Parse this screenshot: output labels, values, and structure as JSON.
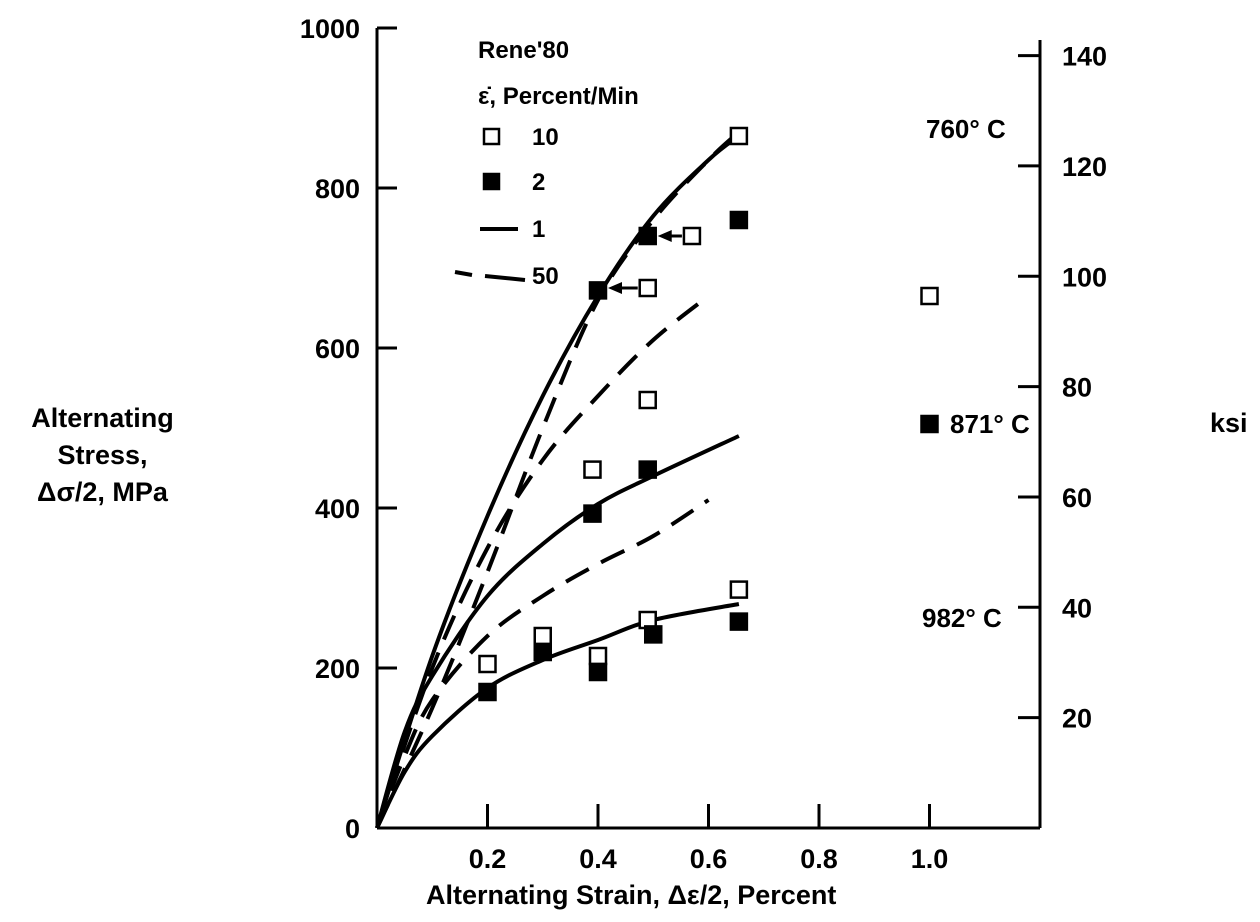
{
  "chart_data": {
    "type": "scatter",
    "title": "",
    "xlabel": "Alternating Strain, Δε/2, Percent",
    "ylabel": [
      "Alternating",
      "Stress,",
      "Δσ/2, MPa"
    ],
    "y2label": "ksi",
    "xlim": [
      0,
      1.2
    ],
    "ylim": [
      0,
      1000
    ],
    "y2lim": [
      0,
      145
    ],
    "x_ticks": [
      0.2,
      0.4,
      0.6,
      0.8,
      1.0
    ],
    "x_tick_labels": [
      "0.2",
      "0.4",
      "0.6",
      "0.8",
      "1.0"
    ],
    "y_ticks": [
      0,
      200,
      400,
      600,
      800,
      1000
    ],
    "y_tick_labels": [
      "0",
      "200",
      "400",
      "600",
      "800",
      "1000"
    ],
    "y2_ticks": [
      20,
      40,
      60,
      80,
      100,
      120,
      140
    ],
    "y2_tick_labels": [
      "20",
      "40",
      "60",
      "80",
      "100",
      "120",
      "140"
    ],
    "grid": false,
    "legend": {
      "position": "top-left",
      "title": "Rene'80",
      "subtitle": "ε̇,  Percent/Min",
      "entries": [
        {
          "marker": "open-square",
          "label": "10"
        },
        {
          "marker": "filled-square",
          "label": "2"
        },
        {
          "marker": "solid-line",
          "label": "1"
        },
        {
          "marker": "dashed-line",
          "label": "50"
        }
      ]
    },
    "annotations": [
      "760° C",
      "871° C",
      "982° C"
    ],
    "series": [
      {
        "name": "10",
        "style": "open-square",
        "temperature": "760° C",
        "x": [
          0.655,
          0.57,
          0.49
        ],
        "y": [
          865,
          740,
          675
        ]
      },
      {
        "name": "2",
        "style": "filled-square",
        "temperature": "760° C",
        "x": [
          0.655,
          0.49,
          0.4
        ],
        "y": [
          760,
          740,
          672
        ]
      },
      {
        "name": "10",
        "style": "open-square",
        "temperature": "871° C",
        "x": [
          1.0,
          0.49,
          0.39
        ],
        "y": [
          665,
          535,
          448
        ]
      },
      {
        "name": "2",
        "style": "filled-square",
        "temperature": "871° C",
        "x": [
          1.0,
          0.49,
          0.39
        ],
        "y": [
          505,
          448,
          393
        ]
      },
      {
        "name": "10",
        "style": "open-square",
        "temperature": "982° C",
        "x": [
          0.2,
          0.3,
          0.4,
          0.49,
          0.655
        ],
        "y": [
          205,
          240,
          215,
          260,
          298
        ]
      },
      {
        "name": "2",
        "style": "filled-square",
        "temperature": "982° C",
        "x": [
          0.2,
          0.3,
          0.4,
          0.5,
          0.655
        ],
        "y": [
          170,
          220,
          195,
          242,
          258
        ]
      },
      {
        "name": "1",
        "style": "solid-line",
        "temperature": "760° C",
        "x": [
          0,
          0.1,
          0.2,
          0.3,
          0.4,
          0.5,
          0.6,
          0.655
        ],
        "y": [
          0,
          215,
          390,
          540,
          665,
          765,
          835,
          865
        ]
      },
      {
        "name": "50",
        "style": "dashed-line",
        "temperature": "760° C",
        "x": [
          0,
          0.1,
          0.2,
          0.3,
          0.4,
          0.5,
          0.6,
          0.655
        ],
        "y": [
          0,
          150,
          320,
          500,
          660,
          760,
          835,
          870
        ]
      },
      {
        "name": "1",
        "style": "solid-line",
        "temperature": "871° C",
        "x": [
          0,
          0.05,
          0.1,
          0.2,
          0.3,
          0.4,
          0.5,
          0.655
        ],
        "y": [
          0,
          120,
          190,
          290,
          355,
          405,
          440,
          490
        ]
      },
      {
        "name": "50",
        "style": "dashed-line",
        "temperature": "871° C",
        "x": [
          0,
          0.1,
          0.2,
          0.3,
          0.4,
          0.5,
          0.6
        ],
        "y": [
          0,
          200,
          350,
          460,
          540,
          610,
          665
        ]
      },
      {
        "name": "1",
        "style": "solid-line",
        "temperature": "982° C",
        "x": [
          0,
          0.05,
          0.1,
          0.2,
          0.3,
          0.4,
          0.5,
          0.655
        ],
        "y": [
          0,
          70,
          115,
          175,
          210,
          235,
          260,
          280
        ]
      },
      {
        "name": "50",
        "style": "dashed-line",
        "temperature": "982° C",
        "x": [
          0,
          0.05,
          0.1,
          0.2,
          0.3,
          0.4,
          0.5,
          0.6
        ],
        "y": [
          0,
          90,
          160,
          240,
          290,
          330,
          365,
          410
        ]
      }
    ]
  }
}
